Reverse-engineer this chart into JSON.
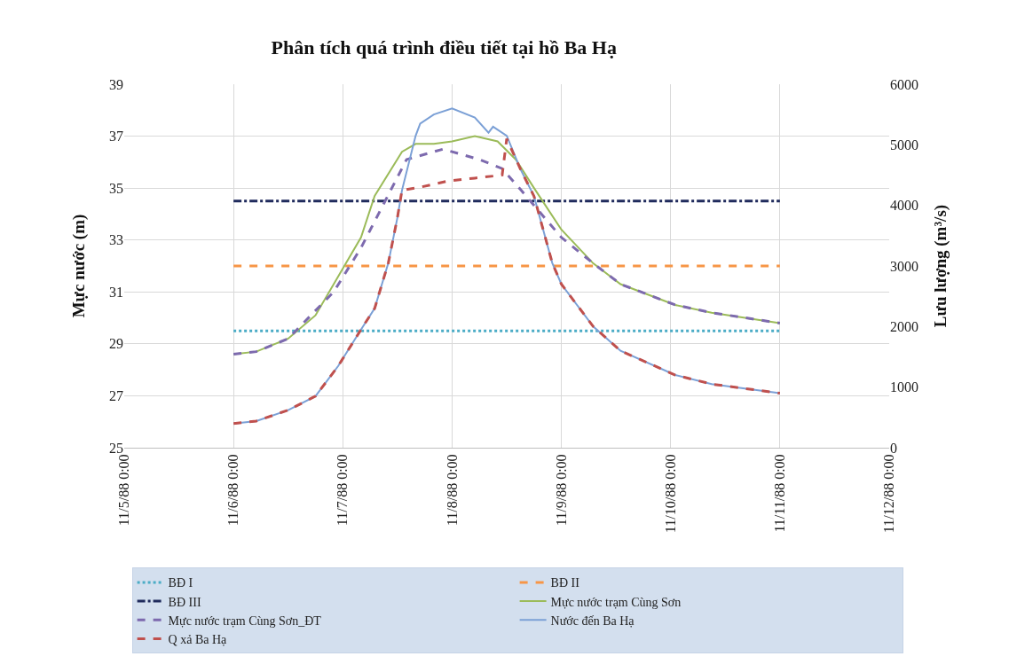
{
  "chart_data": {
    "type": "line",
    "title": "Phân tích quá trình điều tiết tại hồ Ba Hạ",
    "ylabel": "Mực nước (m)",
    "y2label": "Lưu lượng (m³/s)",
    "xlim": [
      "1988-11-05",
      "1988-11-12"
    ],
    "xticks": [
      {
        "value": "1988-11-05",
        "label": "11/5/88 0:00"
      },
      {
        "value": "1988-11-06",
        "label": "11/6/88 0:00"
      },
      {
        "value": "1988-11-07",
        "label": "11/7/88 0:00"
      },
      {
        "value": "1988-11-08",
        "label": "11/8/88 0:00"
      },
      {
        "value": "1988-11-09",
        "label": "11/9/88 0:00"
      },
      {
        "value": "1988-11-10",
        "label": "11/10/88 0:00"
      },
      {
        "value": "1988-11-11",
        "label": "11/11/88 0:00"
      },
      {
        "value": "1988-11-12",
        "label": "11/12/88 0:00"
      }
    ],
    "ylim": [
      25,
      39
    ],
    "yticks": [
      25,
      27,
      29,
      31,
      33,
      35,
      37,
      39
    ],
    "y2lim": [
      0,
      6000
    ],
    "y2ticks": [
      0,
      1000,
      2000,
      3000,
      4000,
      5000,
      6000
    ],
    "grid": true,
    "legend": "bottom",
    "marker": "none",
    "series": [
      {
        "name": "BĐ I",
        "color": "#4bacc6",
        "line_style": "dotted",
        "x": [
          "1988-11-06",
          "1988-11-11"
        ],
        "values": [
          29.5,
          29.5
        ]
      },
      {
        "name": "BĐ II",
        "color": "#f79646",
        "line_style": "dashed",
        "x": [
          "1988-11-06",
          "1988-11-11"
        ],
        "values": [
          32,
          32
        ]
      },
      {
        "name": "BĐ III",
        "color": "#1f2a5c",
        "line_style": "dashdot",
        "x": [
          "1988-11-06",
          "1988-11-11"
        ],
        "values": [
          34.5,
          34.5
        ]
      },
      {
        "name": "Mực nước trạm Cùng Sơn",
        "color": "#9bbb59",
        "line_style": "solid",
        "x": [
          "1988-11-06T00:00",
          "1988-11-06T05:00",
          "1988-11-06T12:00",
          "1988-11-06T18:00",
          "1988-11-06T23:00",
          "1988-11-07T04:00",
          "1988-11-07T07:00",
          "1988-11-07T13:00",
          "1988-11-07T16:00",
          "1988-11-07T20:00",
          "1988-11-08T00:00",
          "1988-11-08T05:00",
          "1988-11-08T10:00",
          "1988-11-08T14:00",
          "1988-11-08T18:00",
          "1988-11-09T00:00",
          "1988-11-09T07:00",
          "1988-11-09T13:00",
          "1988-11-10T01:00",
          "1988-11-10T09:00",
          "1988-11-11T00:00"
        ],
        "values": [
          28.6,
          28.7,
          29.2,
          30.1,
          31.6,
          33.1,
          34.7,
          36.4,
          36.7,
          36.7,
          36.8,
          37.0,
          36.8,
          36.1,
          35.0,
          33.4,
          32.1,
          31.3,
          30.5,
          30.2,
          29.8
        ]
      },
      {
        "name": "Mực nước trạm Cùng Sơn_ĐT",
        "color": "#7d6aae",
        "line_style": "dashed",
        "x": [
          "1988-11-06T00:00",
          "1988-11-06T05:00",
          "1988-11-06T12:00",
          "1988-11-06T22:00",
          "1988-11-07T04:00",
          "1988-11-07T09:00",
          "1988-11-07T14:00",
          "1988-11-07T22:00",
          "1988-11-08T06:00",
          "1988-11-08T11:00",
          "1988-11-08T15:00",
          "1988-11-09T00:00",
          "1988-11-09T07:00",
          "1988-11-09T13:00",
          "1988-11-10T01:00",
          "1988-11-10T09:00",
          "1988-11-11T00:00"
        ],
        "values": [
          28.6,
          28.7,
          29.2,
          31.0,
          32.7,
          34.4,
          36.1,
          36.5,
          36.1,
          35.75,
          34.95,
          33.1,
          32.1,
          31.3,
          30.5,
          30.2,
          29.8
        ]
      },
      {
        "name": "Nước đến Ba Hạ",
        "color": "#7ba0d6",
        "line_style": "solid",
        "axis": "y2",
        "x": [
          "1988-11-06T00:00",
          "1988-11-06T05:00",
          "1988-11-06T12:00",
          "1988-11-06T18:00",
          "1988-11-06T23:00",
          "1988-11-07T04:00",
          "1988-11-07T07:00",
          "1988-11-07T10:00",
          "1988-11-07T12:00",
          "1988-11-07T13:00",
          "1988-11-07T16:00",
          "1988-11-07T17:00",
          "1988-11-07T20:00",
          "1988-11-08T00:00",
          "1988-11-08T05:00",
          "1988-11-08T08:00",
          "1988-11-08T09:00",
          "1988-11-08T12:00",
          "1988-11-08T15:00",
          "1988-11-08T18:00",
          "1988-11-08T22:00",
          "1988-11-09T00:00",
          "1988-11-09T07:00",
          "1988-11-09T13:00",
          "1988-11-10T01:00",
          "1988-11-10T09:00",
          "1988-11-11T00:00"
        ],
        "values": [
          400,
          440,
          620,
          850,
          1350,
          1950,
          2300,
          3050,
          3800,
          4250,
          5150,
          5350,
          5500,
          5600,
          5450,
          5200,
          5300,
          5150,
          4600,
          4150,
          3050,
          2700,
          2000,
          1600,
          1200,
          1050,
          900
        ]
      },
      {
        "name": "Q xả Ba Hạ",
        "color": "#c0504d",
        "line_style": "dashed",
        "axis": "y2",
        "x": [
          "1988-11-06T00:00",
          "1988-11-06T05:00",
          "1988-11-06T12:00",
          "1988-11-06T18:00",
          "1988-11-06T23:00",
          "1988-11-07T04:00",
          "1988-11-07T07:00",
          "1988-11-07T10:00",
          "1988-11-07T12:00",
          "1988-11-07T13:00",
          "1988-11-07T17:00",
          "1988-11-07T23:00",
          "1988-11-08T05:00",
          "1988-11-08T11:00",
          "1988-11-08T12:00",
          "1988-11-08T15:00",
          "1988-11-08T18:00",
          "1988-11-08T22:00",
          "1988-11-09T00:00",
          "1988-11-09T07:00",
          "1988-11-09T13:00",
          "1988-11-10T01:00",
          "1988-11-10T09:00",
          "1988-11-11T00:00"
        ],
        "values": [
          400,
          440,
          620,
          850,
          1350,
          1950,
          2300,
          3050,
          3800,
          4250,
          4300,
          4400,
          4450,
          4500,
          5100,
          4600,
          4150,
          3050,
          2700,
          2000,
          1600,
          1200,
          1050,
          900
        ]
      }
    ]
  }
}
